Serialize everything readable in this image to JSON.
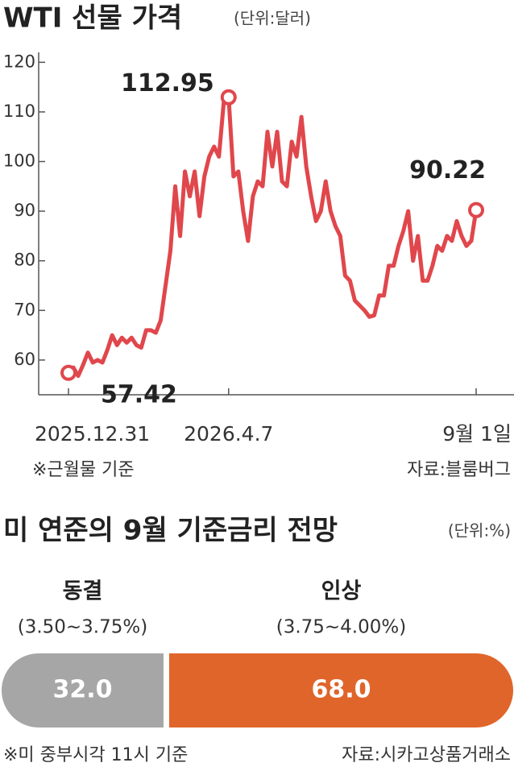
{
  "chart_data": [
    {
      "type": "line",
      "title": "WTI 선물 가격",
      "unit": "(단위:달러)",
      "note": "※근월물 기준",
      "source": "자료:블룸버그",
      "categories": [
        "2025.12.31",
        null,
        null,
        null,
        null,
        null,
        null,
        null,
        null,
        null,
        null,
        null,
        null,
        null,
        null,
        null,
        null,
        null,
        null,
        null,
        null,
        null,
        null,
        null,
        null,
        null,
        null,
        null,
        null,
        null,
        null,
        null,
        null,
        "2026.4.7",
        null,
        null,
        null,
        null,
        null,
        null,
        null,
        null,
        null,
        null,
        null,
        null,
        null,
        null,
        null,
        null,
        null,
        null,
        null,
        null,
        null,
        null,
        null,
        null,
        null,
        null,
        null,
        null,
        null,
        null,
        null,
        null,
        null,
        null,
        null,
        null,
        null,
        null,
        null,
        null,
        null,
        null,
        null,
        null,
        null,
        null,
        null,
        null,
        null,
        null,
        "9월 1일"
      ],
      "values": [
        57.42,
        58.5,
        56.8,
        59,
        61.5,
        59.5,
        60,
        59.5,
        62,
        65,
        63,
        64.5,
        63.5,
        64.5,
        63,
        62.5,
        66,
        66,
        65.5,
        68,
        75,
        82,
        95,
        85,
        98,
        93,
        98,
        89,
        97,
        101,
        103,
        101,
        112,
        112.95,
        97,
        98,
        90,
        84,
        93,
        96,
        95,
        106,
        99,
        106,
        96,
        95,
        104,
        101,
        109,
        99,
        93,
        88,
        90,
        96,
        90,
        87,
        85,
        77,
        76,
        72,
        71,
        70,
        68.7,
        69,
        73,
        73,
        79,
        79,
        83,
        86,
        90,
        80,
        85,
        76,
        76,
        79,
        83,
        82,
        85,
        84,
        88,
        85,
        83,
        84,
        90.22
      ],
      "color": "#e0474c",
      "ylim": [
        53,
        122
      ],
      "yticks": [
        60,
        70,
        80,
        90,
        100,
        110,
        120
      ]
    },
    {
      "type": "stacked-bar",
      "title": "미 연준의 9월 기준금리 전망",
      "unit": "(단위:%)",
      "note": "※미 중부시각 11시 기준",
      "source": "자료:시카고상품거래소",
      "xlim": [
        0,
        100
      ],
      "series": [
        {
          "name": "동결",
          "range": "(3.50~3.75%)",
          "color": "#a6a6a6",
          "values": [
            32
          ],
          "value_labels": [
            "32.0"
          ]
        },
        {
          "name": "인상",
          "range": "(3.75~4.00%)",
          "color": "#e0652a",
          "values": [
            68
          ],
          "value_labels": [
            "68.0"
          ]
        }
      ]
    }
  ]
}
